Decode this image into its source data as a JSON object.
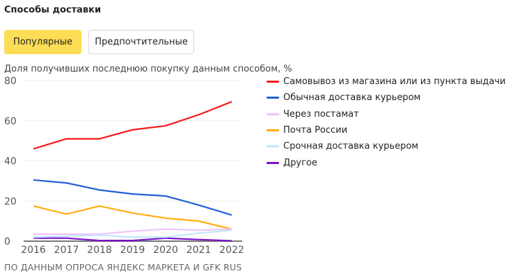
{
  "title": "Способы доставки",
  "tabs": [
    {
      "label": "Популярные",
      "active": true
    },
    {
      "label": "Предпочтительные",
      "active": false
    }
  ],
  "source": "ПО ДАННЫМ ОПРОСА ЯНДЕКС МАРКЕТА И GFK RUS",
  "chart_data": {
    "type": "line",
    "ylabel": "Доля получивших последнюю покупку данным способом, %",
    "x": [
      "2016",
      "2017",
      "2018",
      "2019",
      "2020",
      "2021",
      "2022"
    ],
    "ylim": [
      0,
      80
    ],
    "yticks": [
      "0",
      "20",
      "40",
      "60",
      "80"
    ],
    "grid": true,
    "legend": "right",
    "series": [
      {
        "name": "Самовывоз из магазина или из пункта выдачи",
        "color": "#f51b1b",
        "values": [
          46,
          51,
          51,
          55.5,
          57.5,
          63,
          69.5
        ]
      },
      {
        "name": "Обычная доставка курьером",
        "color": "#2160d8",
        "values": [
          30.5,
          29,
          25.5,
          23.5,
          22.5,
          18,
          13
        ]
      },
      {
        "name": "Через постамат",
        "color": "#eec6fb",
        "values": [
          3.5,
          3.5,
          3.5,
          5,
          6,
          5.5,
          6
        ]
      },
      {
        "name": "Почта России",
        "color": "#ffae10",
        "values": [
          17.5,
          13.5,
          17.5,
          14,
          11.5,
          10,
          6
        ]
      },
      {
        "name": "Срочная доставка курьером",
        "color": "#bfe6fb",
        "values": [
          2,
          2.5,
          3,
          2,
          2,
          4,
          5.5
        ]
      },
      {
        "name": "Другое",
        "color": "#7a12c9",
        "values": [
          1.5,
          1.5,
          0.3,
          0.3,
          1.5,
          0.8,
          0.2
        ]
      }
    ]
  }
}
